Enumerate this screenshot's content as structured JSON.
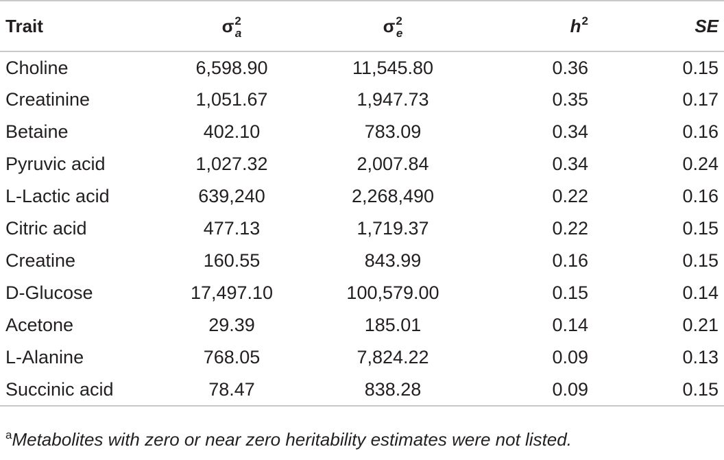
{
  "table": {
    "headers": {
      "trait": "Trait",
      "va_symbol": "σ",
      "va_sup": "2",
      "va_sub": "a",
      "ve_symbol": "σ",
      "ve_sup": "2",
      "ve_sub": "e",
      "h2_symbol": "h",
      "h2_sup": "2",
      "se": "SE"
    },
    "rows": [
      {
        "trait_prefix": "",
        "trait": "Choline",
        "va": "6,598.90",
        "ve": "11,545.80",
        "h2": "0.36",
        "se": "0.15"
      },
      {
        "trait_prefix": "",
        "trait": "Creatinine",
        "va": "1,051.67",
        "ve": "1,947.73",
        "h2": "0.35",
        "se": "0.17"
      },
      {
        "trait_prefix": "",
        "trait": "Betaine",
        "va": "402.10",
        "ve": "783.09",
        "h2": "0.34",
        "se": "0.16"
      },
      {
        "trait_prefix": "",
        "trait": "Pyruvic acid",
        "va": "1,027.32",
        "ve": "2,007.84",
        "h2": "0.34",
        "se": "0.24"
      },
      {
        "trait_prefix": "L",
        "trait": "-Lactic acid",
        "va": "639,240",
        "ve": "2,268,490",
        "h2": "0.22",
        "se": "0.16"
      },
      {
        "trait_prefix": "",
        "trait": "Citric acid",
        "va": "477.13",
        "ve": "1,719.37",
        "h2": "0.22",
        "se": "0.15"
      },
      {
        "trait_prefix": "",
        "trait": "Creatine",
        "va": "160.55",
        "ve": "843.99",
        "h2": "0.16",
        "se": "0.15"
      },
      {
        "trait_prefix": "",
        "trait": "D-Glucose",
        "va": "17,497.10",
        "ve": "100,579.00",
        "h2": "0.15",
        "se": "0.14"
      },
      {
        "trait_prefix": "",
        "trait": "Acetone",
        "va": "29.39",
        "ve": "185.01",
        "h2": "0.14",
        "se": "0.21"
      },
      {
        "trait_prefix": "L",
        "trait": "-Alanine",
        "va": "768.05",
        "ve": "7,824.22",
        "h2": "0.09",
        "se": "0.13"
      },
      {
        "trait_prefix": "",
        "trait": "Succinic acid",
        "va": "78.47",
        "ve": "838.28",
        "h2": "0.09",
        "se": "0.15"
      }
    ]
  },
  "footnote": {
    "mark": "a",
    "text": "Metabolites with zero or near zero heritability estimates were not listed."
  },
  "colors": {
    "text": "#231f20",
    "rule": "#c8c8c8"
  }
}
